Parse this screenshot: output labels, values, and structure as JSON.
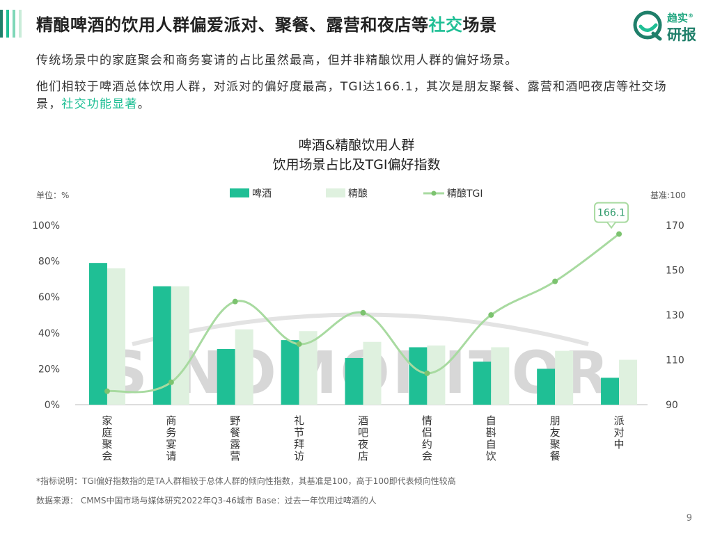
{
  "header": {
    "title_main": "精酿啤酒的饮用人群偏爱派对、聚餐、露营和夜店等",
    "title_highlight": "社交",
    "title_tail": "场景",
    "logo_line1": "趋实",
    "logo_line2": "研报",
    "logo_mark": "®"
  },
  "body": {
    "para1": "传统场景中的家庭聚会和商务宴请的占比虽然最高，但并非精酿饮用人群的偏好场景。",
    "para2_main": "他们相较于啤酒总体饮用人群，对派对的偏好度最高，TGI达166.1，其次是朋友聚餐、露营和酒吧夜店等社交场景，",
    "para2_accent": "社交功能显著",
    "para2_end": "。"
  },
  "colors": {
    "beer": "#1fbf95",
    "craft": "#dff1df",
    "tgi": "#a8daa0",
    "tgi_dot": "#7cc36f",
    "title_accent": "#1fbf95",
    "header_bars": [
      "#1f7f6a",
      "#1fbf95",
      "#7fd7b8",
      "#c9ecd9"
    ]
  },
  "watermark": "SINOMONITOR",
  "chart_data": {
    "type": "bar",
    "title": "啤酒&精酿饮用人群",
    "subtitle": "饮用场景占比及TGI偏好指数",
    "y_left_label": "单位：%",
    "y_right_label": "基准:100",
    "categories": [
      "家庭聚会",
      "商务宴请",
      "野餐露营",
      "礼节拜访",
      "酒吧夜店",
      "情侣约会",
      "自斟自饮",
      "朋友聚餐",
      "派对中"
    ],
    "series": [
      {
        "name": "啤酒",
        "kind": "bar",
        "axis": "left",
        "values": [
          79,
          66,
          31,
          36,
          26,
          32,
          24,
          20,
          15
        ]
      },
      {
        "name": "精酿",
        "kind": "bar",
        "axis": "left",
        "values": [
          76,
          66,
          42,
          41,
          35,
          33,
          32,
          30,
          25
        ]
      },
      {
        "name": "精酿TGI",
        "kind": "line",
        "axis": "right",
        "values": [
          96,
          100,
          136,
          117,
          131,
          104,
          130,
          145,
          166.1
        ]
      }
    ],
    "ylim_left": [
      0,
      100
    ],
    "yticks_left": [
      "0%",
      "20%",
      "40%",
      "60%",
      "80%",
      "100%"
    ],
    "ylim_right": [
      90,
      170
    ],
    "yticks_right": [
      "90",
      "110",
      "130",
      "150",
      "170"
    ],
    "annotation": {
      "label": "166.1",
      "category": "派对中"
    },
    "legend_position": "top-center",
    "grid": false
  },
  "footer": {
    "note": "*指标说明：TGI偏好指数指的是TA人群相较于总体人群的倾向性指数，其基准是100，高于100即代表倾向性较高",
    "source": "数据来源：  CMMS中国市场与媒体研究2022年Q3-46城市 Base：过去一年饮用过啤酒的人",
    "page": "9"
  }
}
